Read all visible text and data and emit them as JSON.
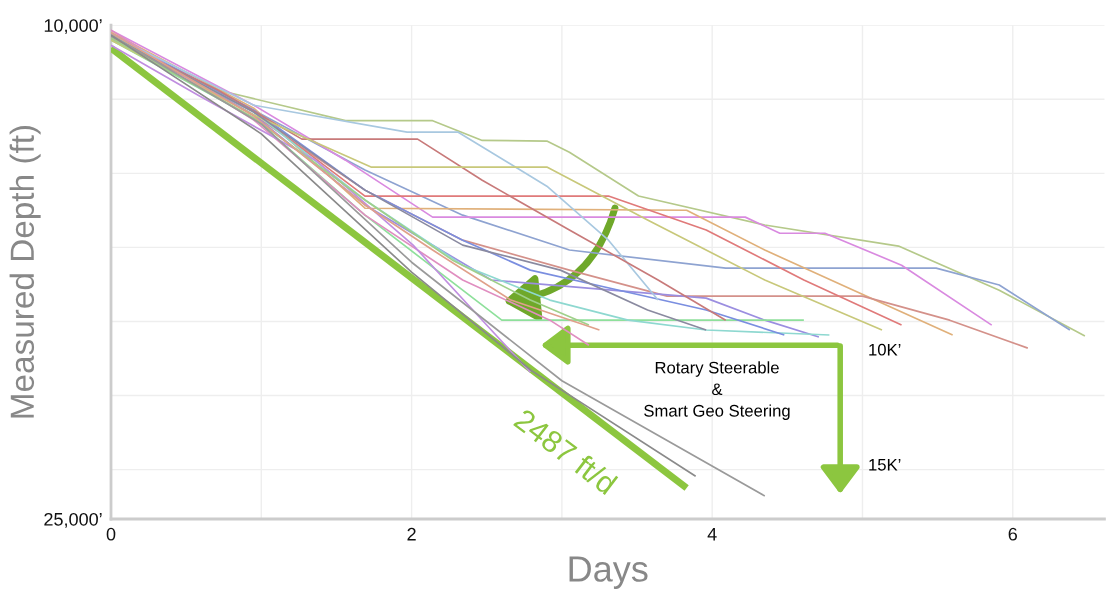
{
  "chart_data": {
    "type": "line",
    "xlabel": "Days",
    "ylabel": "Measured Depth (ft)",
    "xlim": [
      0,
      6.61
    ],
    "ylim": [
      25000,
      10000
    ],
    "xticks": [
      0,
      {
        "value": 1,
        "label": null
      },
      2,
      {
        "value": 3,
        "label": null
      },
      4,
      {
        "value": 5,
        "label": null
      },
      6
    ],
    "yticks": [
      {
        "value": 10000,
        "label": "10,000’"
      },
      {
        "value": 12250,
        "label": null
      },
      {
        "value": 14500,
        "label": null
      },
      {
        "value": 16750,
        "label": null
      },
      {
        "value": 19000,
        "label": null
      },
      {
        "value": 21250,
        "label": null
      },
      {
        "value": 23500,
        "label": null
      },
      {
        "value": 25000,
        "label": "25,000’"
      }
    ],
    "grid": true,
    "legend": false,
    "marker": "none",
    "line_style": "solid",
    "annotations": [
      "Rotary Steerable\n&\nSmart Geo Steering",
      "10K’",
      "15K’"
    ],
    "series": [
      {
        "color": "#b5c98a",
        "x": [
          0,
          0.71,
          1.56,
          2.14,
          2.47,
          2.9,
          3.05,
          3.51,
          4.35,
          5.24,
          5.91,
          6.48
        ],
        "values": [
          10450,
          11970,
          12900,
          12900,
          13500,
          13520,
          13860,
          15190,
          16070,
          16710,
          18050,
          19440
        ]
      },
      {
        "color": "#8ea3d1",
        "x": [
          0,
          0.95,
          1.69,
          2.34,
          3.05,
          4.09,
          5.49,
          5.91,
          6.38
        ],
        "values": [
          10300,
          12580,
          14400,
          15770,
          16830,
          17380,
          17380,
          17890,
          19260
        ]
      },
      {
        "color": "#d98ae0",
        "x": [
          0,
          0.95,
          1.56,
          2.14,
          4.22,
          4.45,
          4.75,
          5.26,
          5.86
        ],
        "values": [
          10150,
          12430,
          14100,
          15830,
          15830,
          16320,
          16320,
          17290,
          19110
        ]
      },
      {
        "color": "#e0b07a",
        "x": [
          0,
          0.95,
          1.69,
          3.83,
          4.35,
          4.94,
          5.6
        ],
        "values": [
          10210,
          12520,
          15560,
          15620,
          16830,
          18050,
          19410
        ]
      },
      {
        "color": "#d4918a",
        "x": [
          0,
          0.95,
          1.69,
          2.34,
          3.05,
          3.7,
          5.0,
          5.58,
          6.1
        ],
        "values": [
          10300,
          12730,
          15010,
          16530,
          17440,
          18230,
          18230,
          18960,
          19810
        ]
      },
      {
        "color": "#e07a7a",
        "x": [
          0,
          0.95,
          1.69,
          3.31,
          3.96,
          4.61,
          5.26
        ],
        "values": [
          10390,
          12640,
          15190,
          15190,
          16220,
          17740,
          19110
        ]
      },
      {
        "color": "#9b8ee0",
        "x": [
          0,
          0.95,
          1.69,
          2.53,
          3.96,
          4.35,
          4.71
        ],
        "values": [
          10240,
          12730,
          15460,
          17740,
          18290,
          18960,
          19470
        ]
      },
      {
        "color": "#8ee09b",
        "x": [
          0,
          0.95,
          1.69,
          2.6,
          4.61
        ],
        "values": [
          10450,
          12820,
          15770,
          18960,
          18960
        ]
      },
      {
        "color": "#8ed8d0",
        "x": [
          0,
          0.95,
          1.69,
          2.34,
          2.92,
          3.44,
          3.96,
          4.78
        ],
        "values": [
          10330,
          12640,
          15310,
          17290,
          18350,
          18960,
          19260,
          19410
        ]
      },
      {
        "color": "#7a8ee0",
        "x": [
          0,
          0.95,
          1.69,
          2.34,
          2.79,
          3.38,
          3.96,
          4.48
        ],
        "values": [
          10270,
          12580,
          15010,
          16530,
          17440,
          18050,
          18650,
          19410
        ]
      },
      {
        "color": "#e08ec0",
        "x": [
          0,
          0.95,
          1.69,
          2.34,
          2.92,
          3.18
        ],
        "values": [
          10150,
          12880,
          15770,
          17740,
          18960,
          19720
        ]
      },
      {
        "color": "#c08ee0",
        "x": [
          0,
          0.58,
          1.36,
          2.01,
          2.53,
          2.79
        ],
        "values": [
          10610,
          12130,
          14100,
          16680,
          19260,
          20540
        ]
      },
      {
        "color": "#a8c8e0",
        "x": [
          0,
          0.95,
          1.97,
          2.31,
          2.9,
          3.31,
          3.64
        ],
        "values": [
          10300,
          12430,
          13250,
          13250,
          14890,
          16530,
          18350
        ]
      },
      {
        "color": "#c87a7a",
        "x": [
          0,
          0.71,
          1.27,
          2.04,
          2.47,
          3.05,
          3.64,
          4.09
        ],
        "values": [
          10390,
          11970,
          13460,
          13460,
          14710,
          16220,
          17740,
          18960
        ]
      },
      {
        "color": "#c8c87a",
        "x": [
          0,
          0.95,
          1.73,
          2.9,
          3.57,
          4.35,
          5.13
        ],
        "values": [
          10450,
          12730,
          14310,
          14310,
          15920,
          17740,
          19260
        ]
      },
      {
        "color": "#8a8aa0",
        "x": [
          0,
          0.95,
          1.69,
          2.34,
          2.99,
          3.57,
          3.96
        ],
        "values": [
          10330,
          12640,
          15010,
          16680,
          17440,
          18650,
          19260
        ]
      },
      {
        "color": "#a0d08a",
        "x": [
          0,
          0.95,
          1.69,
          2.27,
          2.79,
          3.18
        ],
        "values": [
          10390,
          12820,
          15310,
          17130,
          18350,
          19110
        ]
      },
      {
        "color": "#e0a08a",
        "x": [
          0,
          0.95,
          1.69,
          2.14,
          2.66,
          3.25
        ],
        "values": [
          10240,
          12760,
          15460,
          16830,
          18350,
          19260
        ]
      },
      {
        "color": "#9a9a9a",
        "x": [
          0,
          1,
          2,
          3,
          4.35
        ],
        "values": [
          10300,
          13000,
          17200,
          20800,
          24300
        ]
      },
      {
        "color": "#8a8a8a",
        "x": [
          0,
          1,
          2,
          2.8,
          3.89
        ],
        "values": [
          10300,
          13300,
          17500,
          20500,
          23700
        ]
      },
      {
        "name": "2487 ft/d",
        "color": "#8cc63f",
        "x": [
          0,
          3.83
        ],
        "values": [
          10700,
          24060
        ]
      }
    ]
  }
}
